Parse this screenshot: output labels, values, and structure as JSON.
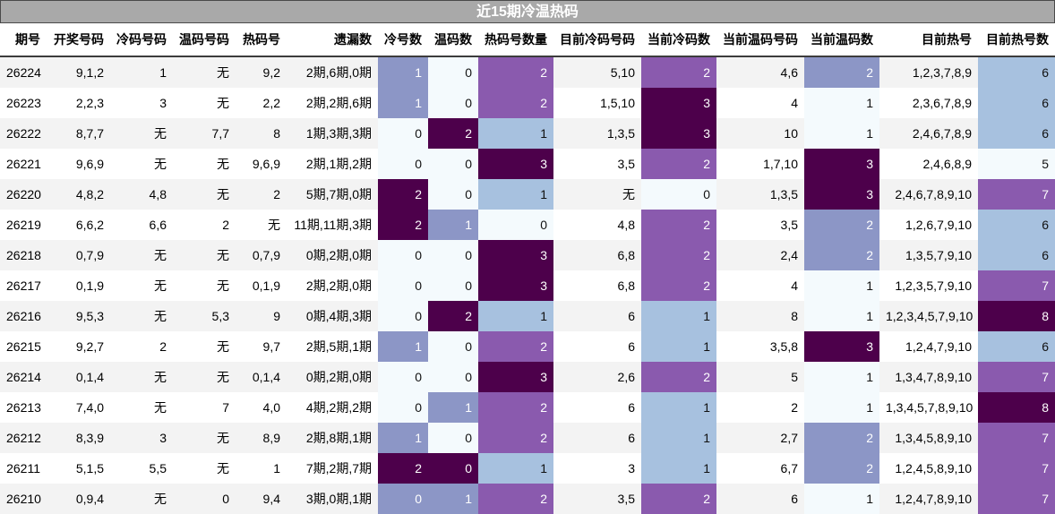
{
  "title": "近15期冷温热码",
  "headers": [
    "期号",
    "开奖号码",
    "冷码号码",
    "温码号码",
    "热码号",
    "遗漏数",
    "冷号数",
    "温码数",
    "热码号数量",
    "目前冷码号码",
    "当前冷码数",
    "当前温码号码",
    "当前温码数",
    "目前热号",
    "目前热号数"
  ],
  "rows": [
    [
      "26224",
      "9,1,2",
      "1",
      "无",
      "9,2",
      "2期,6期,0期",
      "1",
      "0",
      "2",
      "5,10",
      "2",
      "4,6",
      "2",
      "1,2,3,7,8,9",
      "6"
    ],
    [
      "26223",
      "2,2,3",
      "3",
      "无",
      "2,2",
      "2期,2期,6期",
      "1",
      "0",
      "2",
      "1,5,10",
      "3",
      "4",
      "1",
      "2,3,6,7,8,9",
      "6"
    ],
    [
      "26222",
      "8,7,7",
      "无",
      "7,7",
      "8",
      "1期,3期,3期",
      "0",
      "2",
      "1",
      "1,3,5",
      "3",
      "10",
      "1",
      "2,4,6,7,8,9",
      "6"
    ],
    [
      "26221",
      "9,6,9",
      "无",
      "无",
      "9,6,9",
      "2期,1期,2期",
      "0",
      "0",
      "3",
      "3,5",
      "2",
      "1,7,10",
      "3",
      "2,4,6,8,9",
      "5"
    ],
    [
      "26220",
      "4,8,2",
      "4,8",
      "无",
      "2",
      "5期,7期,0期",
      "2",
      "0",
      "1",
      "无",
      "0",
      "1,3,5",
      "3",
      "2,4,6,7,8,9,10",
      "7"
    ],
    [
      "26219",
      "6,6,2",
      "6,6",
      "2",
      "无",
      "11期,11期,3期",
      "2",
      "1",
      "0",
      "4,8",
      "2",
      "3,5",
      "2",
      "1,2,6,7,9,10",
      "6"
    ],
    [
      "26218",
      "0,7,9",
      "无",
      "无",
      "0,7,9",
      "0期,2期,0期",
      "0",
      "0",
      "3",
      "6,8",
      "2",
      "2,4",
      "2",
      "1,3,5,7,9,10",
      "6"
    ],
    [
      "26217",
      "0,1,9",
      "无",
      "无",
      "0,1,9",
      "2期,2期,0期",
      "0",
      "0",
      "3",
      "6,8",
      "2",
      "4",
      "1",
      "1,2,3,5,7,9,10",
      "7"
    ],
    [
      "26216",
      "9,5,3",
      "无",
      "5,3",
      "9",
      "0期,4期,3期",
      "0",
      "2",
      "1",
      "6",
      "1",
      "8",
      "1",
      "1,2,3,4,5,7,9,10",
      "8"
    ],
    [
      "26215",
      "9,2,7",
      "2",
      "无",
      "9,7",
      "2期,5期,1期",
      "1",
      "0",
      "2",
      "6",
      "1",
      "3,5,8",
      "3",
      "1,2,4,7,9,10",
      "6"
    ],
    [
      "26214",
      "0,1,4",
      "无",
      "无",
      "0,1,4",
      "0期,2期,0期",
      "0",
      "0",
      "3",
      "2,6",
      "2",
      "5",
      "1",
      "1,3,4,7,8,9,10",
      "7"
    ],
    [
      "26213",
      "7,4,0",
      "无",
      "7",
      "4,0",
      "4期,2期,2期",
      "0",
      "1",
      "2",
      "6",
      "1",
      "2",
      "1",
      "1,3,4,5,7,8,9,10",
      "8"
    ],
    [
      "26212",
      "8,3,9",
      "3",
      "无",
      "8,9",
      "2期,8期,1期",
      "1",
      "0",
      "2",
      "6",
      "1",
      "2,7",
      "2",
      "1,3,4,5,8,9,10",
      "7"
    ],
    [
      "26211",
      "5,1,5",
      "5,5",
      "无",
      "1",
      "7期,2期,7期",
      "2",
      "0",
      "1",
      "3",
      "1",
      "6,7",
      "2",
      "1,2,4,5,8,9,10",
      "7"
    ],
    [
      "26210",
      "0,9,4",
      "无",
      "0",
      "9,4",
      "3期,0期,1期",
      "0",
      "1",
      "2",
      "3,5",
      "2",
      "6",
      "1",
      "1,2,4,7,8,9,10",
      "7"
    ]
  ],
  "heat_classes": {
    "6": [
      "c3",
      "c3",
      "c1",
      "c1",
      "c5",
      "c5",
      "c1",
      "c1",
      "c1",
      "c3",
      "c1",
      "c1",
      "c3",
      "c5",
      "c3"
    ],
    "7": [
      "c1",
      "c1",
      "c5",
      "c1",
      "c1",
      "c3",
      "c1",
      "c1",
      "c5",
      "c1",
      "c1",
      "c3",
      "c1",
      "c5",
      "c3"
    ],
    "8": [
      "c4",
      "c4",
      "c2",
      "c5",
      "c2",
      "c1",
      "c5",
      "c5",
      "c2",
      "c4",
      "c5",
      "c4",
      "c4",
      "c2",
      "c4"
    ],
    "10": [
      "c4",
      "c5",
      "c5",
      "c4",
      "c1",
      "c4",
      "c4",
      "c4",
      "c2",
      "c2",
      "c4",
      "c2",
      "c2",
      "c2",
      "c4"
    ],
    "12": [
      "c3",
      "c1",
      "c1",
      "c5",
      "c5",
      "c3",
      "c3",
      "c1",
      "c1",
      "c5",
      "c1",
      "c1",
      "c3",
      "c3",
      "c1"
    ],
    "14": [
      "c2",
      "c2",
      "c2",
      "c1",
      "c4",
      "c2",
      "c2",
      "c4",
      "c5",
      "c2",
      "c4",
      "c5",
      "c4",
      "c4",
      "c4"
    ]
  },
  "colors": {
    "c1": "#f4fafd",
    "c2": "#a7c1df",
    "c3": "#8c96c6",
    "c4": "#8a5aae",
    "c5": "#4d004b",
    "title_bg": "#a9a9a9"
  }
}
